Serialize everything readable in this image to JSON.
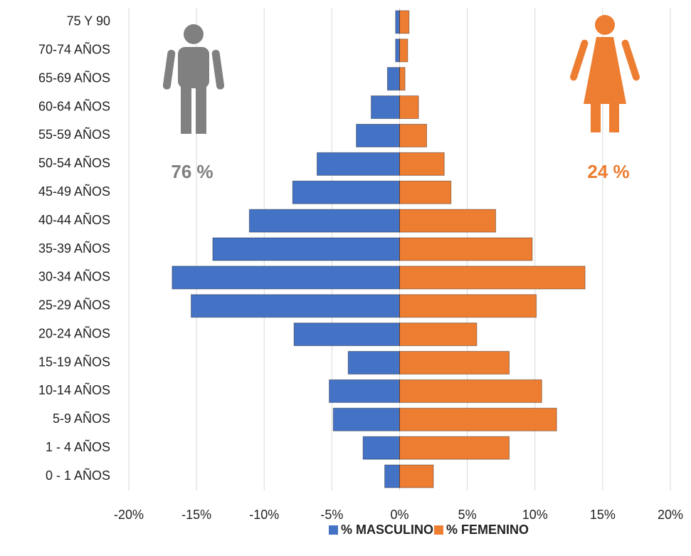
{
  "chart_data": {
    "type": "pyramid",
    "categories": [
      "75 Y 90",
      "70-74 AÑOS",
      "65-69 AÑOS",
      "60-64 AÑOS",
      "55-59 AÑOS",
      "50-54 AÑOS",
      "45-49 AÑOS",
      "40-44 AÑOS",
      "35-39 AÑOS",
      "30-34 AÑOS",
      "25-29 AÑOS",
      "20-24 AÑOS",
      "15-19 AÑOS",
      "10-14 AÑOS",
      "5-9 AÑOS",
      "1 - 4 AÑOS",
      "0 - 1 AÑOS"
    ],
    "series": [
      {
        "name": "% MASCULINO",
        "color": "#4472c4",
        "values": [
          -0.3,
          -0.3,
          -0.9,
          -2.1,
          -3.2,
          -6.1,
          -7.9,
          -11.1,
          -13.8,
          -16.8,
          -15.4,
          -7.8,
          -3.8,
          -5.2,
          -4.9,
          -2.7,
          -1.1
        ]
      },
      {
        "name": "% FEMENINO",
        "color": "#ed7d31",
        "values": [
          0.7,
          0.6,
          0.4,
          1.4,
          2.0,
          3.3,
          3.8,
          7.1,
          9.8,
          13.7,
          10.1,
          5.7,
          8.1,
          10.5,
          11.6,
          8.1,
          2.5
        ]
      }
    ],
    "xlim": [
      -20,
      20
    ],
    "xticks": [
      {
        "value": -20,
        "label": "-20%"
      },
      {
        "value": -15,
        "label": "-15%"
      },
      {
        "value": -10,
        "label": "-10%"
      },
      {
        "value": -5,
        "label": "-5%"
      },
      {
        "value": 0,
        "label": "0%"
      },
      {
        "value": 5,
        "label": "5%"
      },
      {
        "value": 10,
        "label": "10%"
      },
      {
        "value": 15,
        "label": "15%"
      },
      {
        "value": 20,
        "label": "20%"
      }
    ],
    "grid": true,
    "annotations": [
      "76 %",
      "24 %"
    ]
  }
}
